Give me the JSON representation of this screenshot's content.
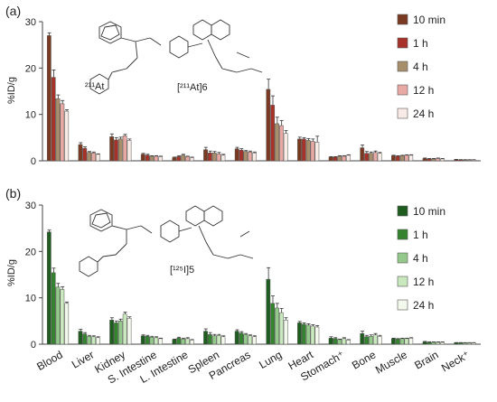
{
  "figure": {
    "structure_label_a": "[²¹¹At]6",
    "structure_label_b": "[¹²⁵I]5"
  },
  "chart_data": [
    {
      "type": "bar",
      "panel_label": "(a)",
      "ylabel": "%ID/g",
      "ylim": [
        0,
        30
      ],
      "yticks": [
        0,
        10,
        20,
        30
      ],
      "legend_position": "top-right",
      "categories": [
        "Blood",
        "Liver",
        "Kidney",
        "S. Intestine",
        "L. Intestine",
        "Spleen",
        "Pancreas",
        "Lung",
        "Heart",
        "Stomach⁺",
        "Bone",
        "Muscle",
        "Brain",
        "Neck⁺"
      ],
      "series": [
        {
          "name": "10 min",
          "color": "#7a3a22",
          "values": [
            27.0,
            3.5,
            5.2,
            1.4,
            0.7,
            2.4,
            2.6,
            15.4,
            4.7,
            0.8,
            2.8,
            1.1,
            0.5,
            0.25
          ],
          "errors": [
            0.6,
            0.4,
            0.6,
            0.2,
            0.1,
            0.5,
            0.3,
            2.2,
            0.4,
            0.1,
            0.6,
            0.1,
            0.1,
            0.05
          ]
        },
        {
          "name": "1 h",
          "color": "#a6322a",
          "values": [
            18.0,
            2.7,
            4.5,
            1.2,
            0.9,
            1.7,
            2.3,
            12.0,
            4.7,
            0.8,
            1.6,
            1.0,
            0.4,
            0.2
          ],
          "errors": [
            1.6,
            0.3,
            0.5,
            0.2,
            0.2,
            0.4,
            0.3,
            2.0,
            0.3,
            0.1,
            0.4,
            0.1,
            0.1,
            0.05
          ]
        },
        {
          "name": "4 h",
          "color": "#a78f6c",
          "values": [
            13.4,
            1.8,
            4.7,
            1.0,
            1.2,
            1.7,
            2.0,
            8.0,
            4.4,
            1.0,
            1.6,
            1.1,
            0.4,
            0.2
          ],
          "errors": [
            0.8,
            0.2,
            0.4,
            0.1,
            0.2,
            0.3,
            0.2,
            1.4,
            0.4,
            0.1,
            0.3,
            0.1,
            0.1,
            0.04
          ]
        },
        {
          "name": "12 h",
          "color": "#e8a9a4",
          "values": [
            12.3,
            1.7,
            5.4,
            1.0,
            0.9,
            1.5,
            1.9,
            7.6,
            4.2,
            1.0,
            1.8,
            1.2,
            0.5,
            0.2
          ],
          "errors": [
            0.7,
            0.2,
            0.3,
            0.1,
            0.1,
            0.3,
            0.2,
            1.1,
            0.5,
            0.1,
            0.3,
            0.1,
            0.1,
            0.04
          ]
        },
        {
          "name": "24 h",
          "color": "#f8ebe6",
          "values": [
            10.7,
            1.4,
            4.4,
            0.9,
            0.7,
            1.2,
            1.7,
            5.9,
            4.0,
            1.2,
            1.6,
            1.2,
            0.4,
            0.2
          ],
          "errors": [
            0.3,
            0.1,
            0.3,
            0.1,
            0.1,
            0.2,
            0.2,
            0.6,
            1.3,
            0.1,
            0.2,
            0.1,
            0.1,
            0.04
          ]
        }
      ]
    },
    {
      "type": "bar",
      "panel_label": "(b)",
      "ylabel": "%ID/g",
      "ylim": [
        0,
        30
      ],
      "yticks": [
        0,
        10,
        20,
        30
      ],
      "legend_position": "top-right",
      "categories": [
        "Blood",
        "Liver",
        "Kidney",
        "S. Intestine",
        "L. Intestine",
        "Spleen",
        "Pancreas",
        "Lung",
        "Heart",
        "Stomach⁺",
        "Bone",
        "Muscle",
        "Brain",
        "Neck⁺"
      ],
      "series": [
        {
          "name": "10 min",
          "color": "#1f5c1f",
          "values": [
            24.2,
            2.8,
            5.2,
            1.8,
            1.0,
            2.8,
            2.8,
            14.0,
            4.6,
            1.3,
            2.3,
            1.2,
            0.5,
            0.3
          ],
          "errors": [
            0.4,
            0.4,
            0.5,
            0.2,
            0.1,
            0.5,
            0.3,
            2.5,
            0.3,
            0.3,
            0.5,
            0.1,
            0.1,
            0.05
          ]
        },
        {
          "name": "1 h",
          "color": "#33832f",
          "values": [
            15.4,
            2.2,
            4.6,
            1.7,
            1.3,
            2.1,
            2.4,
            8.8,
            4.3,
            1.2,
            1.6,
            1.1,
            0.4,
            0.3
          ],
          "errors": [
            1.0,
            0.3,
            0.4,
            0.2,
            0.2,
            0.4,
            0.3,
            1.6,
            0.3,
            0.2,
            0.3,
            0.1,
            0.1,
            0.05
          ]
        },
        {
          "name": "4 h",
          "color": "#93c98a",
          "values": [
            12.3,
            1.7,
            5.0,
            1.5,
            1.1,
            1.8,
            2.1,
            7.8,
            4.1,
            1.0,
            1.7,
            1.2,
            0.4,
            0.3
          ],
          "errors": [
            0.8,
            0.2,
            0.4,
            0.2,
            0.2,
            0.3,
            0.2,
            1.0,
            0.3,
            0.1,
            0.3,
            0.1,
            0.1,
            0.04
          ]
        },
        {
          "name": "12 h",
          "color": "#c9e8bd",
          "values": [
            11.8,
            1.6,
            6.5,
            1.4,
            1.2,
            1.9,
            1.8,
            6.8,
            3.9,
            1.2,
            2.0,
            1.2,
            0.4,
            0.3
          ],
          "errors": [
            0.6,
            0.2,
            0.4,
            0.2,
            0.2,
            0.2,
            0.2,
            0.9,
            0.3,
            0.2,
            0.3,
            0.1,
            0.1,
            0.04
          ]
        },
        {
          "name": "24 h",
          "color": "#f2f8ec",
          "values": [
            8.8,
            1.4,
            5.6,
            1.2,
            0.9,
            1.6,
            1.6,
            5.2,
            3.7,
            0.9,
            1.7,
            1.3,
            0.4,
            0.3
          ],
          "errors": [
            0.3,
            0.2,
            0.3,
            0.1,
            0.1,
            0.2,
            0.2,
            0.5,
            0.3,
            0.1,
            0.2,
            0.1,
            0.1,
            0.04
          ]
        }
      ]
    }
  ]
}
